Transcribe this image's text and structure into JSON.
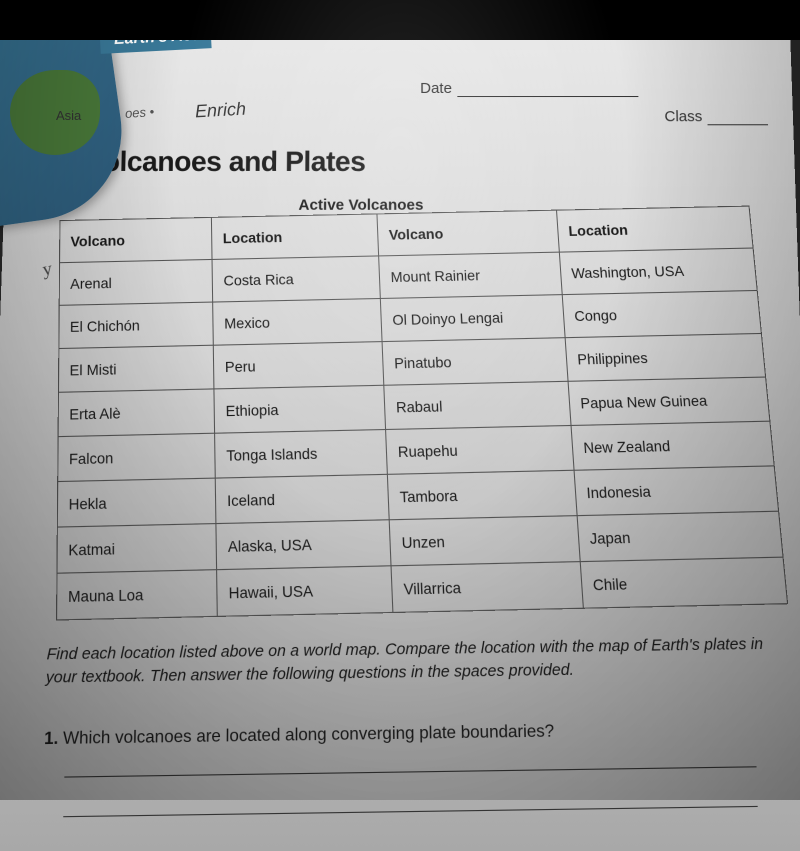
{
  "book_tab": "Earth's Act",
  "asia": "Asia",
  "curved": "oes  • ",
  "enrich": "Enrich",
  "date_label": "Date",
  "class_label": "Class",
  "title": "Volcanoes and Plates",
  "subtitle": "Active Volcanoes",
  "table": {
    "headers": [
      "Volcano",
      "Location",
      "Volcano",
      "Location"
    ],
    "rows": [
      [
        "Arenal",
        "Costa Rica",
        "Mount Rainier",
        "Washington, USA"
      ],
      [
        "El Chichón",
        "Mexico",
        "Ol Doinyo Lengai",
        "Congo"
      ],
      [
        "El Misti",
        "Peru",
        "Pinatubo",
        "Philippines"
      ],
      [
        "Erta Alè",
        "Ethiopia",
        "Rabaul",
        "Papua New Guinea"
      ],
      [
        "Falcon",
        "Tonga Islands",
        "Ruapehu",
        "New Zealand"
      ],
      [
        "Hekla",
        "Iceland",
        "Tambora",
        "Indonesia"
      ],
      [
        "Katmai",
        "Alaska, USA",
        "Unzen",
        "Japan"
      ],
      [
        "Mauna Loa",
        "Hawaii, USA",
        "Villarrica",
        "Chile"
      ]
    ]
  },
  "instructions": "Find each location listed above on a world map. Compare the location with the map of Earth's plates in your textbook. Then answer the following questions in the spaces provided.",
  "question_num": "1.",
  "question_text": "Which volcanoes are located along converging plate boundaries?"
}
